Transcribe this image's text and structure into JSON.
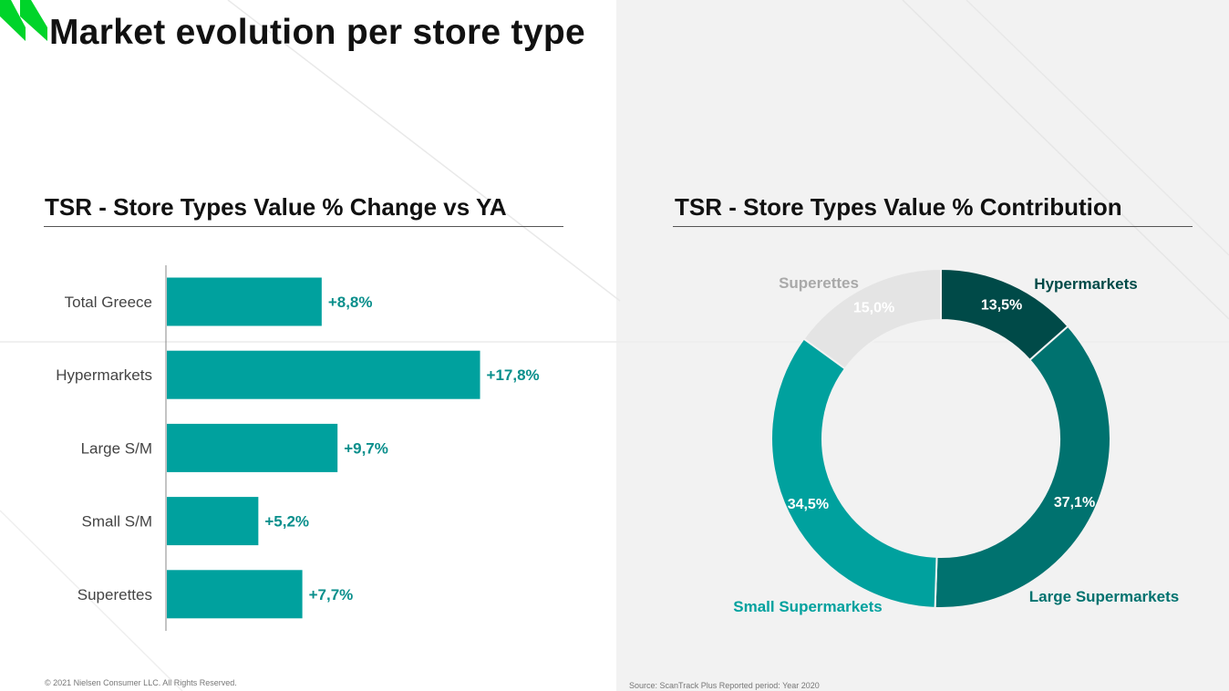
{
  "page": {
    "title": "Market evolution per store type",
    "copyright": "© 2021 Nielsen Consumer LLC. All Rights Reserved.",
    "source": "Source: ScanTrack Plus  Reported period: Year 2020"
  },
  "colors": {
    "brand_green": "#00d42a",
    "bar": "#00a19e",
    "hypermarkets": "#004a48",
    "large_supermarkets": "#00726f",
    "small_supermarkets": "#00a19e",
    "superettes": "#e4e4e4",
    "superettes_label": "#a9a9a9"
  },
  "chart_data": [
    {
      "type": "bar",
      "orientation": "horizontal",
      "title": "TSR - Store Types Value % Change vs YA",
      "categories": [
        "Total Greece",
        "Hypermarkets",
        "Large S/M",
        "Small S/M",
        "Superettes"
      ],
      "values": [
        8.8,
        17.8,
        9.7,
        5.2,
        7.7
      ],
      "value_labels": [
        "+8,8%",
        "+17,8%",
        "+9,7%",
        "+5,2%",
        "+7,7%"
      ],
      "unit": "%",
      "xlim": [
        0,
        20
      ],
      "grid": false,
      "legend": "none"
    },
    {
      "type": "pie",
      "style": "donut",
      "title": "TSR - Store Types Value % Contribution",
      "slices": [
        {
          "name": "Hypermarkets",
          "value": 13.5,
          "value_label": "13,5%"
        },
        {
          "name": "Large Supermarkets",
          "value": 37.1,
          "value_label": "37,1%"
        },
        {
          "name": "Small Supermarkets",
          "value": 34.5,
          "value_label": "34,5%"
        },
        {
          "name": "Superettes",
          "value": 15.0,
          "value_label": "15,0%"
        }
      ],
      "start": "top",
      "direction": "clockwise",
      "legend": "labels outside slices"
    }
  ]
}
